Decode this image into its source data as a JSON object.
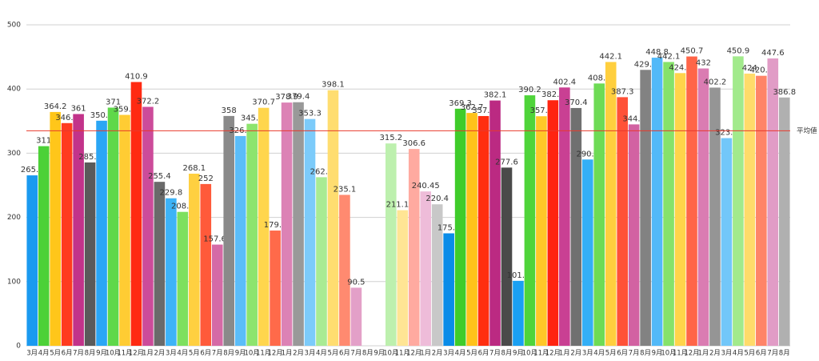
{
  "chart_data": {
    "type": "bar",
    "categories": [
      "3月",
      "4月",
      "5月",
      "6月",
      "7月",
      "8月",
      "9月",
      "10月",
      "11月",
      "12月",
      "1月",
      "2月",
      "3月",
      "4月",
      "5月",
      "6月",
      "7月",
      "8月",
      "9月",
      "10月",
      "11月",
      "12月",
      "1月",
      "2月",
      "3月",
      "4月",
      "5月",
      "6月",
      "7月",
      "8月",
      "9月",
      "10月",
      "11月",
      "12月",
      "1月",
      "2月",
      "3月",
      "4月",
      "5月",
      "6月",
      "7月",
      "8月",
      "9月",
      "10月",
      "11月",
      "12月",
      "1月",
      "2月",
      "3月",
      "4月",
      "5月",
      "6月",
      "7月",
      "8月",
      "9月",
      "10月",
      "11月",
      "12月",
      "1月",
      "2月",
      "3月",
      "4月",
      "5月",
      "6月",
      "7月",
      "8月"
    ],
    "values": [
      265.5,
      311,
      364.2,
      346.9,
      361,
      285.6,
      350.6,
      371,
      359.7,
      410.9,
      372.2,
      255.4,
      229.8,
      208.6,
      268.1,
      252,
      157.65,
      358,
      326.8,
      345.8,
      370.7,
      179.5,
      378.9,
      379.4,
      353.3,
      262.6,
      398.1,
      235.1,
      90.5,
      null,
      null,
      315.2,
      211.195,
      306.6,
      240.45,
      220.4,
      175.2,
      369.3,
      362.7,
      357.9,
      382.1,
      277.6,
      101.2,
      390.2,
      357.6,
      382.5,
      402.4,
      370.4,
      290.2,
      408.6,
      442.1,
      387.3,
      344.9,
      429.8,
      448.8,
      442.1,
      424.8,
      450.7,
      432,
      402.2,
      323.5,
      450.9,
      424,
      420.6,
      447.6,
      386.8
    ],
    "colors": [
      "#1a9af0",
      "#4cd137",
      "#ffc61a",
      "#ff3b1f",
      "#c2338a",
      "#5a5a5a",
      "#2aa6f5",
      "#5fd84a",
      "#ffcc33",
      "#ff2a12",
      "#cc4b9a",
      "#6a6a6a",
      "#3db3f7",
      "#7ee05e",
      "#ffd040",
      "#ff5a3a",
      "#d56aa6",
      "#8a8a8a",
      "#5bbdf9",
      "#8de46e",
      "#ffd64d",
      "#ff6a4a",
      "#dc82b5",
      "#999999",
      "#7ccbfa",
      "#a9eb93",
      "#ffdd70",
      "#ff8a70",
      "#e3a0c8",
      "#aaaaaa",
      "#aaaaaa",
      "#bdf0ae",
      "#ffe594",
      "#ffaaa0",
      "#eebcd9",
      "#c8c8c8",
      "#0a8ce8",
      "#3fcc2a",
      "#ffc21a",
      "#ff2e10",
      "#bb2a82",
      "#4a4a4a",
      "#1aa0f2",
      "#4fd43a",
      "#ffc828",
      "#ff2410",
      "#c94093",
      "#707070",
      "#34aff6",
      "#6edb55",
      "#ffcf3e",
      "#ff5238",
      "#d262a2",
      "#828282",
      "#52b9f8",
      "#86e26a",
      "#ffd44a",
      "#ff6548",
      "#da7cb2",
      "#959595",
      "#72c7f9",
      "#a2ea8c",
      "#ffdb6a",
      "#ff8468",
      "#e19cc6",
      "#b0b0b0"
    ],
    "ylim": [
      0,
      500
    ],
    "yticks": [
      0,
      100,
      200,
      300,
      400,
      500
    ],
    "grid": true,
    "average": {
      "label": "平均値",
      "value": 335,
      "color": "#e8392c"
    }
  }
}
